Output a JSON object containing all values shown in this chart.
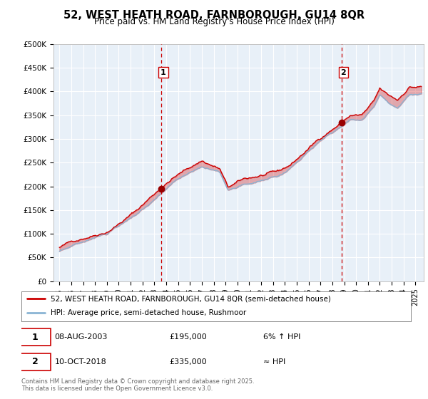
{
  "title": "52, WEST HEATH ROAD, FARNBOROUGH, GU14 8QR",
  "subtitle": "Price paid vs. HM Land Registry's House Price Index (HPI)",
  "ylabel_ticks": [
    "£0",
    "£50K",
    "£100K",
    "£150K",
    "£200K",
    "£250K",
    "£300K",
    "£350K",
    "£400K",
    "£450K",
    "£500K"
  ],
  "ytick_values": [
    0,
    50000,
    100000,
    150000,
    200000,
    250000,
    300000,
    350000,
    400000,
    450000,
    500000
  ],
  "ylim": [
    0,
    500000
  ],
  "xlim_start": 1994.5,
  "xlim_end": 2025.7,
  "xtick_years": [
    1995,
    1996,
    1997,
    1998,
    1999,
    2000,
    2001,
    2002,
    2003,
    2004,
    2005,
    2006,
    2007,
    2008,
    2009,
    2010,
    2011,
    2012,
    2013,
    2014,
    2015,
    2016,
    2017,
    2018,
    2019,
    2020,
    2021,
    2022,
    2023,
    2024,
    2025
  ],
  "marker1_x": 2003.6,
  "marker1_y": 195000,
  "marker1_label": "1",
  "marker1_date": "08-AUG-2003",
  "marker1_price": "£195,000",
  "marker1_hpi": "6% ↑ HPI",
  "marker2_x": 2018.78,
  "marker2_y": 335000,
  "marker2_label": "2",
  "marker2_date": "10-OCT-2018",
  "marker2_price": "£335,000",
  "marker2_hpi": "≈ HPI",
  "line1_color": "#cc0000",
  "line2_color": "#8ab4d4",
  "fill_color": "#ddeeff",
  "vline_color": "#cc0000",
  "grid_color": "#cccccc",
  "background_color": "#ffffff",
  "legend1_label": "52, WEST HEATH ROAD, FARNBOROUGH, GU14 8QR (semi-detached house)",
  "legend2_label": "HPI: Average price, semi-detached house, Rushmoor",
  "footer": "Contains HM Land Registry data © Crown copyright and database right 2025.\nThis data is licensed under the Open Government Licence v3.0.",
  "sale1_value": 195000,
  "sale2_value": 335000
}
